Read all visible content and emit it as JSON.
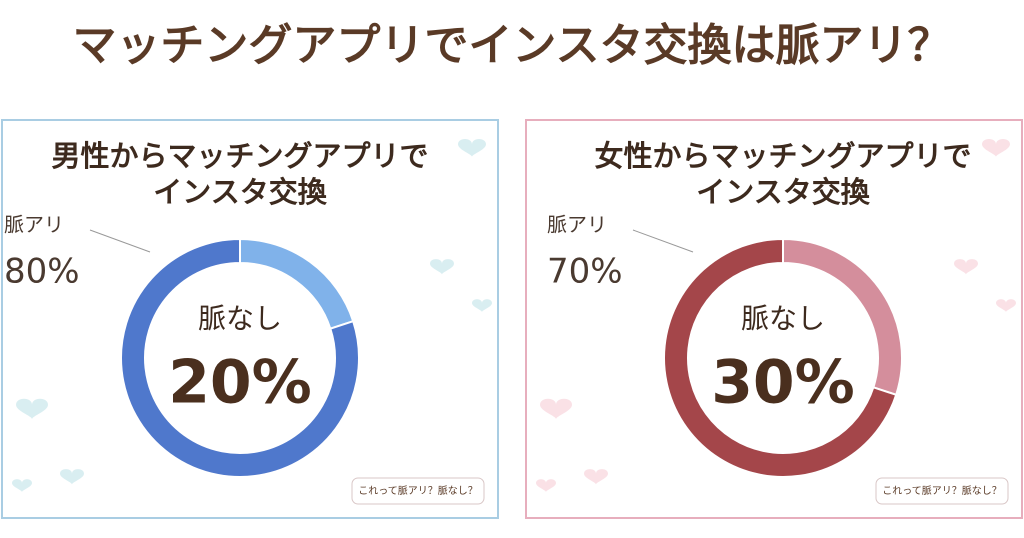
{
  "header": {
    "title": "マッチングアプリでインスタ交換は脈アリ？"
  },
  "chart_data": [
    {
      "type": "donut",
      "title": [
        "男性からマッチングアプリで",
        "インスタ交換"
      ],
      "categories": [
        "脈アリ",
        "脈なし"
      ],
      "values": [
        80,
        20
      ],
      "value_labels": [
        "80%",
        "20%"
      ],
      "colors": [
        "#4f78cc",
        "#80b2ea"
      ],
      "badge": "これって脈アリ？脈なし？"
    },
    {
      "type": "donut",
      "title": [
        "女性からマッチングアプリで",
        "インスタ交換"
      ],
      "categories": [
        "脈アリ",
        "脈なし"
      ],
      "values": [
        70,
        30
      ],
      "value_labels": [
        "70%",
        "30%"
      ],
      "colors": [
        "#a4464a",
        "#d48e9c"
      ],
      "badge": "これって脈アリ？脈なし？"
    }
  ]
}
